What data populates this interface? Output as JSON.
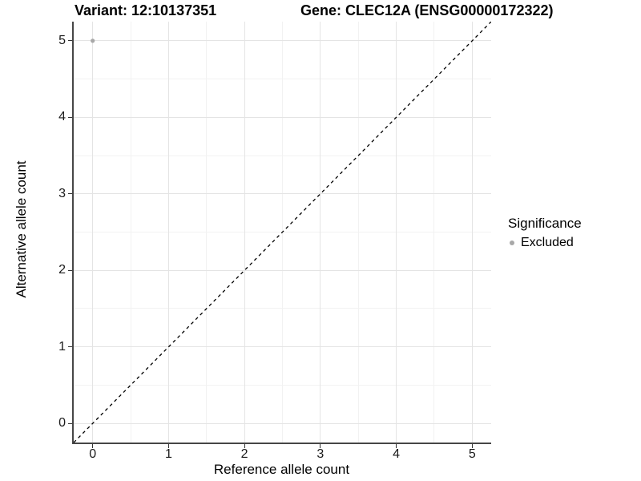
{
  "titles": {
    "variant": "Variant: 12:10137351",
    "gene": "Gene: CLEC12A (ENSG00000172322)"
  },
  "chart_data": {
    "type": "scatter",
    "xlabel": "Reference allele count",
    "ylabel": "Alternative allele count",
    "xlim": [
      -0.25,
      5.25
    ],
    "ylim": [
      -0.25,
      5.25
    ],
    "x_ticks": [
      0,
      1,
      2,
      3,
      4,
      5
    ],
    "y_ticks": [
      0,
      1,
      2,
      3,
      4,
      5
    ],
    "x_minor_ticks": [
      0.5,
      1.5,
      2.5,
      3.5,
      4.5
    ],
    "y_minor_ticks": [
      0.5,
      1.5,
      2.5,
      3.5,
      4.5
    ],
    "grid": true,
    "points": [
      {
        "x": 0,
        "y": 5,
        "series": "Excluded"
      }
    ],
    "reference_line": {
      "kind": "identity",
      "slope": 1,
      "intercept": 0,
      "style": "dashed",
      "color": "#000000"
    },
    "legend": {
      "title": "Significance",
      "position": "right",
      "entries": [
        {
          "label": "Excluded",
          "color": "#a8a8a8",
          "marker": "circle"
        }
      ]
    }
  },
  "colors": {
    "background": "#ffffff",
    "grid_major": "#e4e4e4",
    "grid_minor": "#f2f2f2",
    "axis_line": "#464646",
    "tick_mark": "#333333",
    "text": "#000000",
    "point": "#ababab"
  }
}
